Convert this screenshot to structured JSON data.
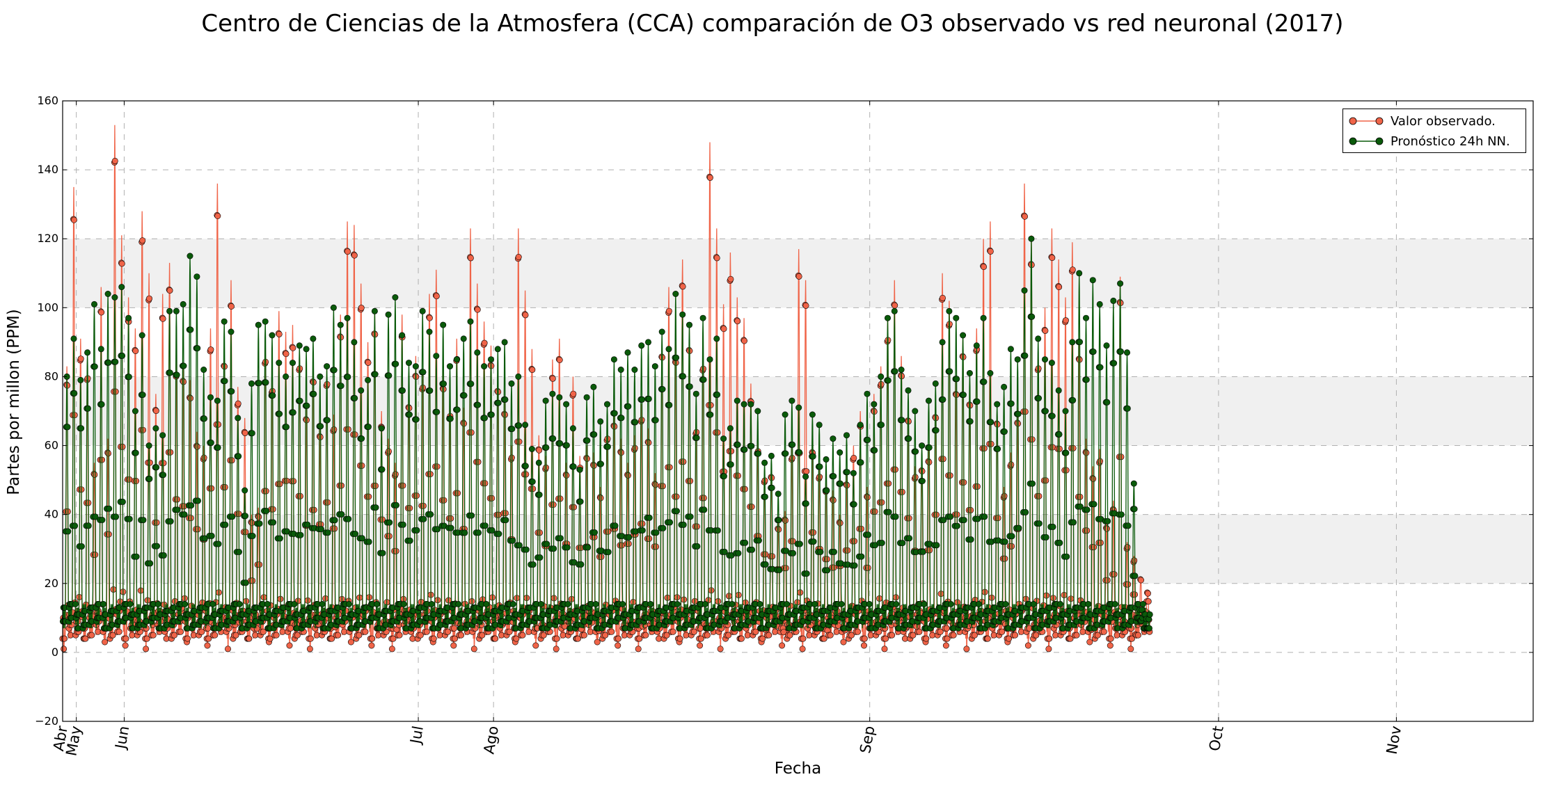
{
  "chart_data": {
    "type": "line",
    "title": "Centro de Ciencias de la Atmosfera (CCA) comparación de O3 observado vs red neuronal (2017)",
    "xlabel": "Fecha",
    "ylabel": "Partes por millon (PPM)",
    "ylim": [
      -20,
      160
    ],
    "yticks": [
      "−20",
      "0",
      "20",
      "40",
      "60",
      "80",
      "100",
      "120",
      "140",
      "160"
    ],
    "xlim": [
      "2017-04-29",
      "2017-11-30"
    ],
    "xticks": [
      {
        "date": "2017-04-29",
        "label": "Abr"
      },
      {
        "date": "2017-05-01",
        "label": "May"
      },
      {
        "date": "2017-05-08",
        "label": "Jun"
      },
      {
        "date": "2017-06-20",
        "label": "Jul"
      },
      {
        "date": "2017-07-01",
        "label": "Ago"
      },
      {
        "date": "2017-08-25",
        "label": "Sep"
      },
      {
        "date": "2017-10-15",
        "label": "Oct"
      },
      {
        "date": "2017-11-10",
        "label": "Nov"
      }
    ],
    "grid": true,
    "bands": [
      [
        20,
        40
      ],
      [
        60,
        80
      ],
      [
        100,
        120
      ]
    ],
    "legend_position": "top-right",
    "sampling": "hourly",
    "start": "2017-04-29",
    "end": "2017-11-21",
    "series": [
      {
        "name": "Valor observado.",
        "color": "#f06448",
        "daily_peaks": [
          83,
          135,
          91,
          85,
          55,
          106,
          62,
          153,
          121,
          103,
          94,
          128,
          110,
          75,
          104,
          113,
          86,
          84,
          79,
          64,
          60,
          94,
          136,
          89,
          108,
          77,
          68,
          40,
          42,
          90,
          81,
          99,
          93,
          95,
          88,
          72,
          84,
          67,
          83,
          69,
          98,
          125,
          124,
          107,
          90,
          99,
          70,
          62,
          55,
          98,
          76,
          86,
          82,
          104,
          111,
          82,
          73,
          91,
          71,
          123,
          107,
          96,
          89,
          81,
          74,
          60,
          123,
          105,
          88,
          63,
          57,
          85,
          91,
          55,
          80,
          57,
          60,
          58,
          48,
          66,
          70,
          62,
          55,
          63,
          72,
          65,
          52,
          92,
          106,
          90,
          114,
          94,
          68,
          88,
          148,
          123,
          101,
          116,
          103,
          97,
          78,
          62,
          53,
          54,
          38,
          41,
          60,
          117,
          108,
          62,
          54,
          50,
          47,
          40,
          52,
          60,
          70,
          48,
          75,
          83,
          97,
          108,
          86,
          72,
          54,
          56,
          59,
          73,
          110,
          102,
          80,
          92,
          77,
          94,
          120,
          125,
          71,
          48,
          58,
          71,
          136,
          121,
          88,
          100,
          123,
          114,
          103,
          119,
          91,
          62,
          54,
          59,
          38,
          44,
          109,
          32,
          28,
          22,
          18
        ]
      },
      {
        "name": "Pronóstico 24h NN.",
        "color": "#0a5a0a",
        "daily_peaks": [
          80,
          91,
          79,
          87,
          101,
          88,
          104,
          103,
          106,
          97,
          70,
          92,
          60,
          65,
          63,
          99,
          99,
          101,
          115,
          109,
          82,
          74,
          73,
          96,
          93,
          68,
          47,
          78,
          95,
          96,
          92,
          84,
          80,
          84,
          89,
          88,
          91,
          80,
          83,
          100,
          95,
          97,
          90,
          76,
          79,
          99,
          65,
          98,
          103,
          92,
          84,
          83,
          99,
          93,
          86,
          95,
          83,
          85,
          91,
          96,
          87,
          83,
          85,
          88,
          90,
          78,
          80,
          66,
          59,
          55,
          73,
          75,
          74,
          72,
          65,
          53,
          74,
          77,
          67,
          72,
          85,
          82,
          87,
          82,
          89,
          90,
          83,
          93,
          88,
          104,
          98,
          95,
          75,
          97,
          85,
          91,
          62,
          65,
          73,
          72,
          72,
          70,
          55,
          57,
          46,
          69,
          73,
          71,
          51,
          69,
          66,
          56,
          62,
          58,
          63,
          52,
          66,
          75,
          72,
          80,
          97,
          99,
          82,
          76,
          70,
          60,
          73,
          78,
          90,
          99,
          97,
          92,
          81,
          89,
          97,
          81,
          72,
          77,
          88,
          85,
          105,
          120,
          91,
          85,
          84,
          76,
          70,
          90,
          110,
          97,
          108,
          101,
          89,
          102,
          107,
          87,
          49,
          9,
          7
        ]
      }
    ]
  }
}
